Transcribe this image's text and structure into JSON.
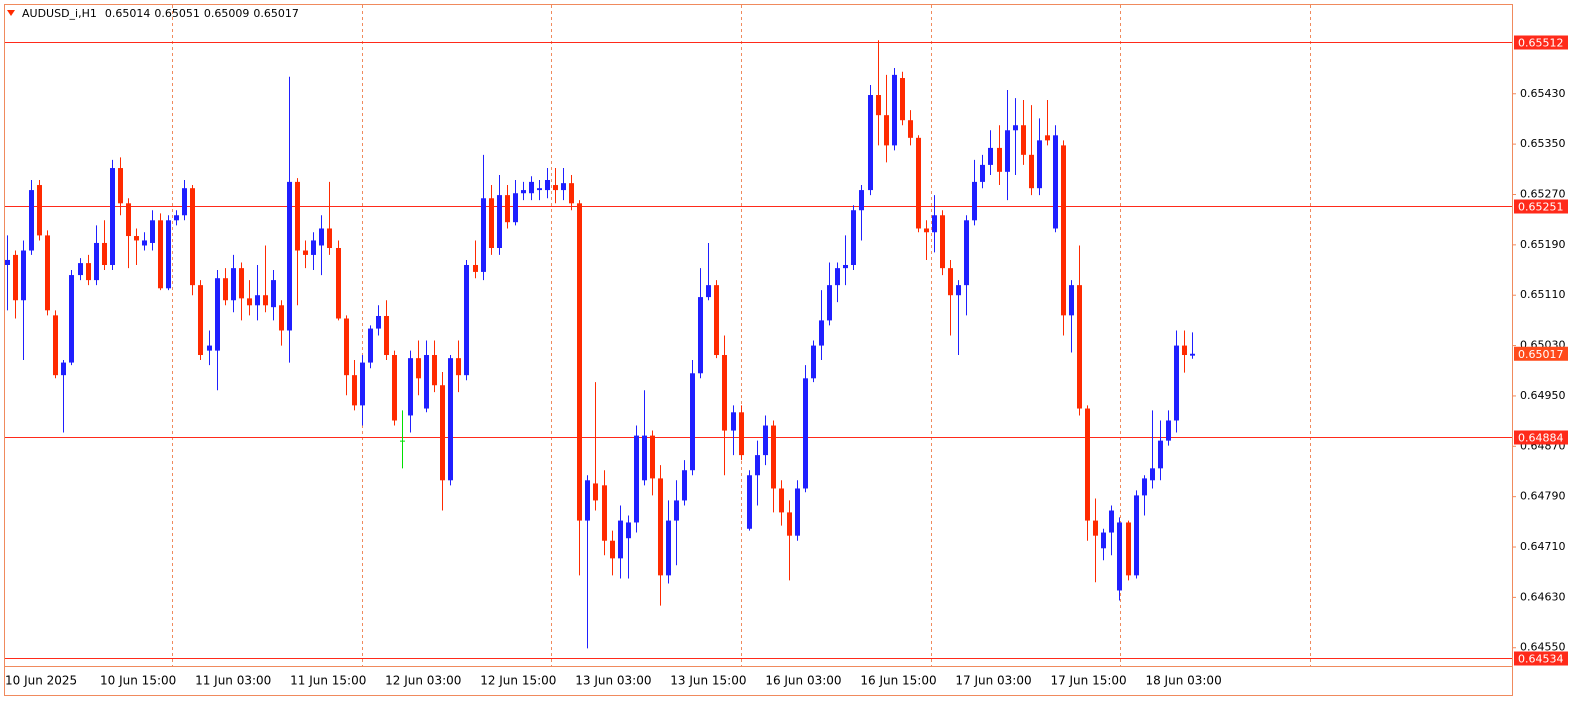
{
  "chart_data": {
    "type": "candlestick",
    "title": "AUDUSD_i,H1",
    "header_values": [
      0.65014,
      0.65051,
      0.65009,
      0.65017
    ],
    "categories": [
      "10 Jun 2025",
      null,
      null,
      null,
      null,
      null,
      null,
      null,
      null,
      null,
      null,
      null,
      "10 Jun 15:00",
      null,
      null,
      null,
      null,
      null,
      null,
      null,
      null,
      null,
      null,
      null,
      "11 Jun 03:00",
      null,
      null,
      null,
      null,
      null,
      null,
      null,
      null,
      null,
      null,
      null,
      "11 Jun 15:00",
      null,
      null,
      null,
      null,
      null,
      null,
      null,
      null,
      null,
      null,
      null,
      "12 Jun 03:00",
      null,
      null,
      null,
      null,
      null,
      null,
      null,
      null,
      null,
      null,
      null,
      "12 Jun 15:00",
      null,
      null,
      null,
      null,
      null,
      null,
      null,
      null,
      null,
      null,
      null,
      "13 Jun 03:00",
      null,
      null,
      null,
      null,
      null,
      null,
      null,
      null,
      null,
      null,
      null,
      "13 Jun 15:00",
      null,
      null,
      null,
      null,
      null,
      null,
      null,
      null,
      null,
      null,
      null,
      "16 Jun 03:00",
      null,
      null,
      null,
      null,
      null,
      null,
      null,
      null,
      null,
      null,
      null,
      "16 Jun 15:00",
      null,
      null,
      null,
      null,
      null,
      null,
      null,
      null,
      null,
      null,
      null,
      "17 Jun 03:00",
      null,
      null,
      null,
      null,
      null,
      null,
      null,
      null,
      null,
      null,
      null,
      "17 Jun 15:00",
      null,
      null,
      null,
      null,
      null,
      null,
      null,
      null,
      null,
      null,
      null,
      "18 Jun 03:00",
      null,
      null,
      null
    ],
    "open": [
      0.65158,
      0.65174,
      0.65102,
      0.65181,
      0.65285,
      0.65205,
      0.65078,
      0.64983,
      0.65003,
      0.65142,
      0.65161,
      0.65134,
      0.65193,
      0.65158,
      0.65312,
      0.65256,
      0.65204,
      0.65189,
      0.65193,
      0.65229,
      0.65121,
      0.65229,
      0.65237,
      0.6528,
      0.65126,
      0.65022,
      0.65022,
      0.65137,
      0.65102,
      0.65153,
      0.65105,
      0.65094,
      0.6511,
      0.65091,
      0.65094,
      0.65054,
      0.6529,
      0.65181,
      0.65174,
      0.65189,
      0.65216,
      0.65185,
      0.65073,
      0.64983,
      0.64935,
      0.65003,
      0.65057,
      0.65077,
      0.65015,
      0.64879,
      0.64919,
      0.6501,
      0.6493,
      0.65015,
      0.64967,
      0.64816,
      0.6501,
      0.64983,
      0.65158,
      0.65147,
      0.65264,
      0.65185,
      0.65269,
      0.65226,
      0.65272,
      0.65272,
      0.65277,
      0.65277,
      0.65285,
      0.65277,
      0.65288,
      0.65256,
      0.64752,
      0.64811,
      0.64808,
      0.6472,
      0.64692,
      0.64724,
      0.64749,
      0.64816,
      0.64887,
      0.64819,
      0.64665,
      0.64752,
      0.64784,
      0.64832,
      0.64986,
      0.65107,
      0.65126,
      0.65015,
      0.64895,
      0.64924,
      0.64739,
      0.64824,
      0.64856,
      0.64903,
      0.64803,
      0.64765,
      0.64728,
      0.64803,
      0.64978,
      0.6503,
      0.6507,
      0.65126,
      0.65153,
      0.65158,
      0.65245,
      0.65277,
      0.65428,
      0.65396,
      0.65348,
      0.65455,
      0.65388,
      0.6536,
      0.65216,
      0.6521,
      0.65237,
      0.65153,
      0.6511,
      0.65126,
      0.65229,
      0.6529,
      0.65317,
      0.65344,
      0.65306,
      0.65372,
      0.6538,
      0.65333,
      0.6528,
      0.65364,
      0.65216,
      0.65348,
      0.65078,
      0.65126,
      0.6493,
      0.64752,
      0.64708,
      0.64733,
      0.64641,
      0.64749,
      0.64665,
      0.64792,
      0.64816,
      0.64835,
      0.64879,
      0.64911,
      0.6503,
      0.65014
    ],
    "high": [
      0.65205,
      0.65181,
      0.65197,
      0.65293,
      0.65293,
      0.65213,
      0.65086,
      0.65007,
      0.6515,
      0.65169,
      0.65174,
      0.65221,
      0.65229,
      0.65325,
      0.65329,
      0.65264,
      0.65216,
      0.6521,
      0.65245,
      0.6524,
      0.65237,
      0.65245,
      0.65293,
      0.65285,
      0.65134,
      0.65054,
      0.6515,
      0.65153,
      0.65174,
      0.65162,
      0.65134,
      0.65158,
      0.65189,
      0.6515,
      0.65102,
      0.65457,
      0.65296,
      0.65197,
      0.6521,
      0.65237,
      0.6529,
      0.65197,
      0.65078,
      0.65007,
      0.65015,
      0.65062,
      0.65094,
      0.65102,
      0.65022,
      0.64927,
      0.65022,
      0.65038,
      0.65038,
      0.65038,
      0.64988,
      0.65015,
      0.65038,
      0.65166,
      0.65197,
      0.65333,
      0.65285,
      0.65301,
      0.65285,
      0.65293,
      0.6529,
      0.65299,
      0.65293,
      0.65312,
      0.65312,
      0.65312,
      0.65301,
      0.65261,
      0.64824,
      0.64972,
      0.64832,
      0.64736,
      0.64776,
      0.6476,
      0.64903,
      0.64959,
      0.64895,
      0.6484,
      0.64784,
      0.64816,
      0.64848,
      0.65007,
      0.65153,
      0.65193,
      0.65134,
      0.65046,
      0.64935,
      0.64935,
      0.64832,
      0.64879,
      0.64919,
      0.64911,
      0.64816,
      0.64784,
      0.64816,
      0.64999,
      0.65038,
      0.65118,
      0.65162,
      0.65162,
      0.65205,
      0.65253,
      0.65285,
      0.65444,
      0.65515,
      0.6546,
      0.65471,
      0.65465,
      0.65404,
      0.65364,
      0.65229,
      0.65269,
      0.65245,
      0.65166,
      0.65134,
      0.65237,
      0.65325,
      0.65333,
      0.65372,
      0.6538,
      0.65436,
      0.65423,
      0.6542,
      0.65412,
      0.65391,
      0.6542,
      0.6538,
      0.65356,
      0.65134,
      0.65189,
      0.64935,
      0.64787,
      0.64739,
      0.64776,
      0.64757,
      0.64752,
      0.648,
      0.64824,
      0.64927,
      0.64911,
      0.64927,
      0.65054,
      0.65054,
      0.65051
    ],
    "low": [
      0.65086,
      0.65073,
      0.65007,
      0.65174,
      0.65197,
      0.65078,
      0.64978,
      0.64892,
      0.64999,
      0.65134,
      0.65126,
      0.65126,
      0.6515,
      0.6515,
      0.65237,
      0.65153,
      0.65158,
      0.65181,
      0.65181,
      0.65118,
      0.65118,
      0.65221,
      0.65229,
      0.6511,
      0.65007,
      0.64999,
      0.64959,
      0.65094,
      0.65083,
      0.6507,
      0.65078,
      0.6507,
      0.65083,
      0.6507,
      0.6503,
      0.65003,
      0.65094,
      0.65153,
      0.6515,
      0.65142,
      0.65174,
      0.6507,
      0.64951,
      0.64927,
      0.64903,
      0.64994,
      0.65046,
      0.65007,
      0.64903,
      0.64835,
      0.64892,
      0.64951,
      0.64924,
      0.64956,
      0.64768,
      0.64808,
      0.64956,
      0.64975,
      0.65137,
      0.65134,
      0.65174,
      0.65174,
      0.65216,
      0.65221,
      0.65261,
      0.65261,
      0.65261,
      0.65264,
      0.65256,
      0.65261,
      0.65245,
      0.64665,
      0.64549,
      0.64768,
      0.64697,
      0.64665,
      0.6466,
      0.6466,
      0.64733,
      0.64808,
      0.64792,
      0.64617,
      0.64652,
      0.64681,
      0.64776,
      0.64824,
      0.64978,
      0.65102,
      0.6501,
      0.64824,
      0.64856,
      0.64848,
      0.64736,
      0.64776,
      0.6484,
      0.64765,
      0.64744,
      0.64657,
      0.6472,
      0.64797,
      0.64972,
      0.65007,
      0.65062,
      0.65099,
      0.65126,
      0.6515,
      0.65197,
      0.65269,
      0.65348,
      0.65321,
      0.6534,
      0.6538,
      0.65348,
      0.6521,
      0.65166,
      0.65178,
      0.65142,
      0.65046,
      0.65015,
      0.65078,
      0.65221,
      0.6528,
      0.65301,
      0.65285,
      0.65261,
      0.65301,
      0.65317,
      0.65269,
      0.65269,
      0.65348,
      0.6521,
      0.65046,
      0.65019,
      0.64919,
      0.6472,
      0.64654,
      0.64689,
      0.64697,
      0.64625,
      0.64657,
      0.6466,
      0.6476,
      0.64803,
      0.64816,
      0.64871,
      0.64892,
      0.64987,
      0.65009
    ],
    "close": [
      0.65166,
      0.65102,
      0.65181,
      0.65277,
      0.65205,
      0.65086,
      0.64983,
      0.65003,
      0.65142,
      0.65161,
      0.65134,
      0.65193,
      0.65158,
      0.65312,
      0.65256,
      0.65204,
      0.65197,
      0.65197,
      0.65229,
      0.65121,
      0.65229,
      0.65237,
      0.6528,
      0.65126,
      0.65015,
      0.6503,
      0.65137,
      0.65102,
      0.65153,
      0.65105,
      0.65094,
      0.6511,
      0.65094,
      0.65134,
      0.65054,
      0.6529,
      0.65181,
      0.65174,
      0.65197,
      0.65216,
      0.65185,
      0.65073,
      0.64983,
      0.64935,
      0.65003,
      0.65057,
      0.65077,
      0.65015,
      0.64911,
      0.64879,
      0.6501,
      0.64978,
      0.65015,
      0.64967,
      0.64816,
      0.6501,
      0.64983,
      0.65158,
      0.65147,
      0.65264,
      0.65185,
      0.65269,
      0.65226,
      0.65272,
      0.65277,
      0.6529,
      0.6528,
      0.65293,
      0.65277,
      0.65288,
      0.65256,
      0.64752,
      0.64816,
      0.64784,
      0.6472,
      0.64692,
      0.64752,
      0.64749,
      0.64887,
      0.64887,
      0.64819,
      0.64665,
      0.64752,
      0.64784,
      0.64832,
      0.64986,
      0.65107,
      0.65126,
      0.65015,
      0.64895,
      0.64924,
      0.64856,
      0.64824,
      0.64856,
      0.64903,
      0.64803,
      0.64765,
      0.64728,
      0.64803,
      0.64978,
      0.6503,
      0.6507,
      0.65126,
      0.65153,
      0.65158,
      0.65245,
      0.65277,
      0.65428,
      0.65396,
      0.65348,
      0.6546,
      0.65388,
      0.6536,
      0.65216,
      0.6521,
      0.65237,
      0.65153,
      0.6511,
      0.65126,
      0.65229,
      0.6529,
      0.65317,
      0.65344,
      0.65306,
      0.65372,
      0.6538,
      0.65333,
      0.6528,
      0.65356,
      0.65356,
      0.65364,
      0.65078,
      0.65126,
      0.6493,
      0.64752,
      0.64728,
      0.64733,
      0.64768,
      0.64749,
      0.64665,
      0.64792,
      0.64819,
      0.64835,
      0.64879,
      0.64911,
      0.6503,
      0.65015,
      0.65017
    ],
    "up_color": "#1f1fff",
    "down_color": "#ff2a00",
    "doji_color": "#00e000",
    "ylim": [
      0.64521,
      0.65571
    ],
    "yticks": [
      {
        "value": 0.6543,
        "label": "0.65430"
      },
      {
        "value": 0.6535,
        "label": "0.65350"
      },
      {
        "value": 0.6527,
        "label": "0.65270"
      },
      {
        "value": 0.6519,
        "label": "0.65190"
      },
      {
        "value": 0.6511,
        "label": "0.65110"
      },
      {
        "value": 0.6503,
        "label": "0.65030"
      },
      {
        "value": 0.6495,
        "label": "0.64950"
      },
      {
        "value": 0.6487,
        "label": "0.64870"
      },
      {
        "value": 0.6479,
        "label": "0.64790"
      },
      {
        "value": 0.6471,
        "label": "0.64710"
      },
      {
        "value": 0.6463,
        "label": "0.64630"
      },
      {
        "value": 0.6455,
        "label": "0.64550"
      }
    ],
    "levels": [
      0.65512,
      0.65251,
      0.64884,
      0.64534
    ],
    "level_color": "#ff2a1a",
    "current_price": 0.65017,
    "current_price_color": "#ff4a1a"
  }
}
